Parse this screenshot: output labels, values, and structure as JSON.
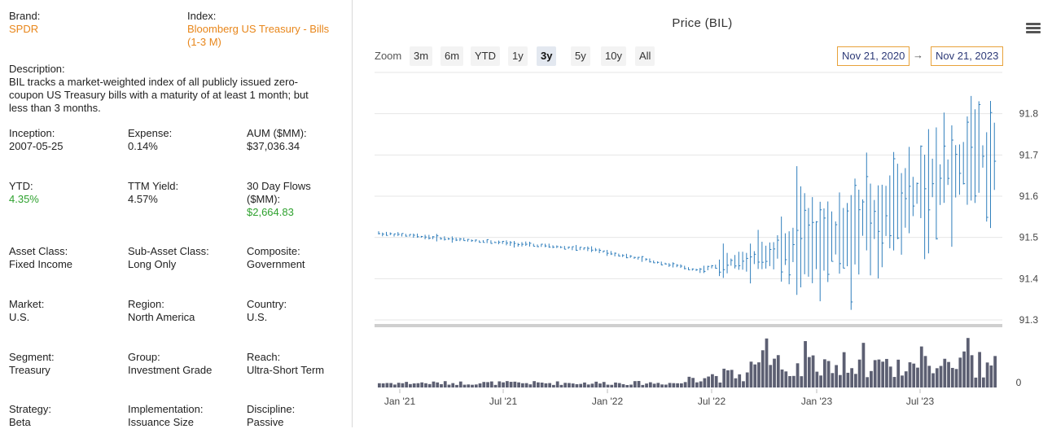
{
  "fields": {
    "brand": {
      "label": "Brand:",
      "value": "SPDR"
    },
    "index": {
      "label": "Index:",
      "value": "Bloomberg US Treasury - Bills",
      "value2": "(1-3 M)"
    },
    "description": {
      "label": "Description:",
      "lines": [
        "BIL tracks a market-weighted index of all publicly issued zero-",
        "coupon US Treasury bills with a maturity of at least 1 month; but",
        "less than 3 months."
      ]
    },
    "inception": {
      "label": "Inception:",
      "value": "2007-05-25"
    },
    "expense": {
      "label": "Expense:",
      "value": "0.14%"
    },
    "aum": {
      "label": "AUM ($MM):",
      "value": "$37,036.34"
    },
    "ytd": {
      "label": "YTD:",
      "value": "4.35%"
    },
    "ttm_yield": {
      "label": "TTM Yield:",
      "value": "4.57%"
    },
    "flows": {
      "label": "30 Day Flows",
      "label2": "($MM):",
      "value": "$2,664.83"
    },
    "asset_class": {
      "label": "Asset Class:",
      "value": "Fixed Income"
    },
    "sub_asset_class": {
      "label": "Sub-Asset Class:",
      "value": "Long Only"
    },
    "composite": {
      "label": "Composite:",
      "value": "Government"
    },
    "market": {
      "label": "Market:",
      "value": "U.S."
    },
    "region": {
      "label": "Region:",
      "value": "North America"
    },
    "country": {
      "label": "Country:",
      "value": "U.S."
    },
    "segment": {
      "label": "Segment:",
      "value": "Treasury"
    },
    "group": {
      "label": "Group:",
      "value": "Investment Grade"
    },
    "reach": {
      "label": "Reach:",
      "value": "Ultra-Short Term"
    },
    "strategy": {
      "label": "Strategy:",
      "value": "Beta"
    },
    "implementation": {
      "label": "Implementation:",
      "value": "Issuance Size"
    },
    "discipline": {
      "label": "Discipline:",
      "value": "Passive"
    }
  },
  "colors": {
    "orange": "#e8861a",
    "green": "#2ea12e",
    "price_line": "#2f7ebc",
    "volume": "#5c5f72"
  },
  "chart": {
    "zoom_label": "Zoom",
    "zoom_buttons": [
      "3m",
      "6m",
      "YTD",
      "1y",
      "3y",
      "5y",
      "10y",
      "All"
    ],
    "zoom_active": "3y",
    "range_from": "Nov 21, 2020",
    "range_to": "Nov 21, 2023",
    "arrow": "→"
  },
  "chart_data": {
    "type": "line",
    "title": "Price (BIL)",
    "x_tick_labels": [
      "Jan '21",
      "Jul '21",
      "Jan '22",
      "Jul '22",
      "Jan '23",
      "Jul '23"
    ],
    "y_ticks": [
      91.3,
      91.4,
      91.5,
      91.6,
      91.7,
      91.8
    ],
    "ylim": [
      91.3,
      91.9
    ],
    "volume_axis_label": "0",
    "series": [
      {
        "segment": "Nov 2020 - Nov 2021",
        "start": 91.51,
        "end": 91.47
      },
      {
        "segment": "Nov 2021 - May 2022",
        "start": 91.47,
        "end": 91.42
      },
      {
        "segment": "May 2022 - Dec 2022",
        "start": 91.42,
        "end": 91.5
      },
      {
        "segment": "Dec 2022 - Nov 2023",
        "start": 91.5,
        "end": 91.71
      }
    ]
  }
}
